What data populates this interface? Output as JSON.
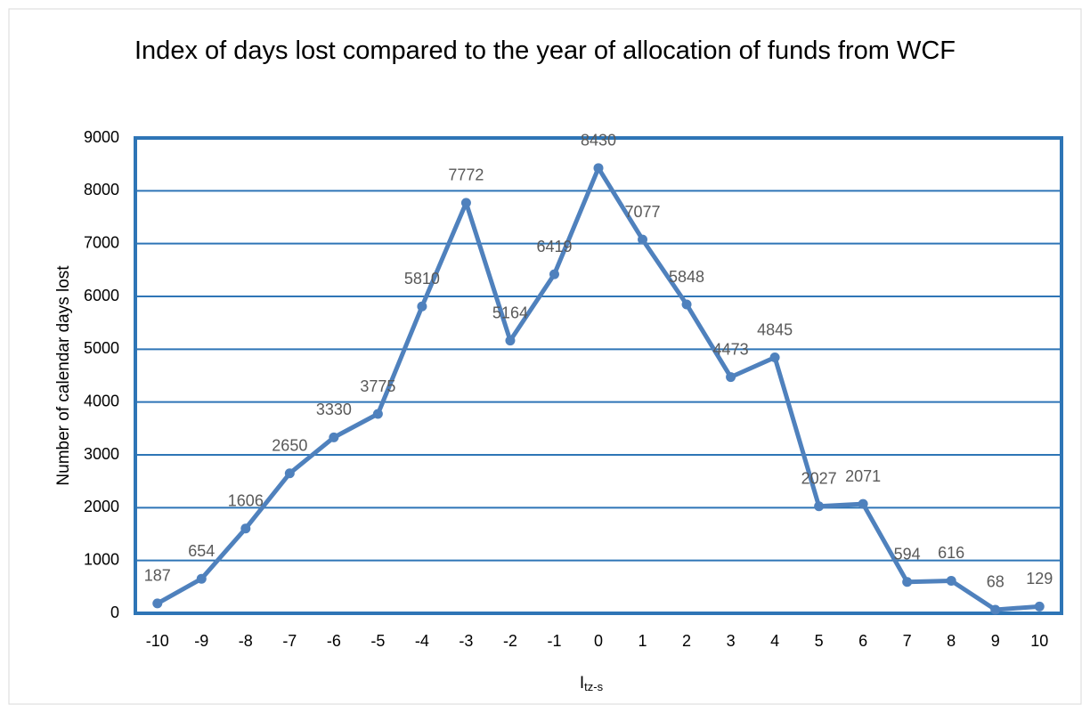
{
  "chart_data": {
    "type": "line",
    "title": "Index of days lost compared to the year of allocation of funds from WCF",
    "x_label": "I",
    "x_label_sub": "tz-s",
    "y_label": "Number of calendar days lost",
    "categories": [
      "-10",
      "-9",
      "-8",
      "-7",
      "-6",
      "-5",
      "-4",
      "-3",
      "-2",
      "-1",
      "0",
      "1",
      "2",
      "3",
      "4",
      "5",
      "6",
      "7",
      "8",
      "9",
      "10"
    ],
    "series": [
      {
        "color": "#4f81bd",
        "values": [
          187,
          654,
          1606,
          2650,
          3330,
          3775,
          5810,
          7772,
          5164,
          6419,
          8430,
          7077,
          5848,
          4473,
          4845,
          2027,
          2071,
          594,
          616,
          68,
          129
        ]
      }
    ],
    "ylim": [
      0,
      9000
    ],
    "yticks": [
      0,
      1000,
      2000,
      3000,
      4000,
      5000,
      6000,
      7000,
      8000,
      9000
    ],
    "grid": true,
    "grid_color": "#2e75b6",
    "data_labels": true
  }
}
